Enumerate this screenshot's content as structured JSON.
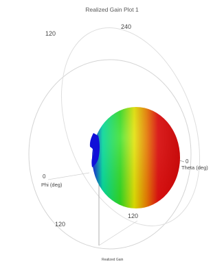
{
  "chart_data": {
    "type": "3d-polar-radiation-pattern",
    "title": "Realized Gain Plot 1",
    "axes": {
      "phi": {
        "label": "Phi (deg)",
        "zero_label": "0"
      },
      "theta": {
        "label": "Theta (deg)",
        "zero_label": "0"
      },
      "bottom_label": "Realized Gain"
    },
    "circle_tick_labels": [
      "120",
      "240",
      "120",
      "120"
    ],
    "colormap": [
      "#1010e0",
      "#00e0a0",
      "#30e020",
      "#e8e800",
      "#f08000",
      "#e81010"
    ],
    "pattern": {
      "peak_direction": "theta = 0 deg (right)",
      "shape": "single main lobe",
      "min_color": "blue",
      "max_color": "red"
    }
  }
}
